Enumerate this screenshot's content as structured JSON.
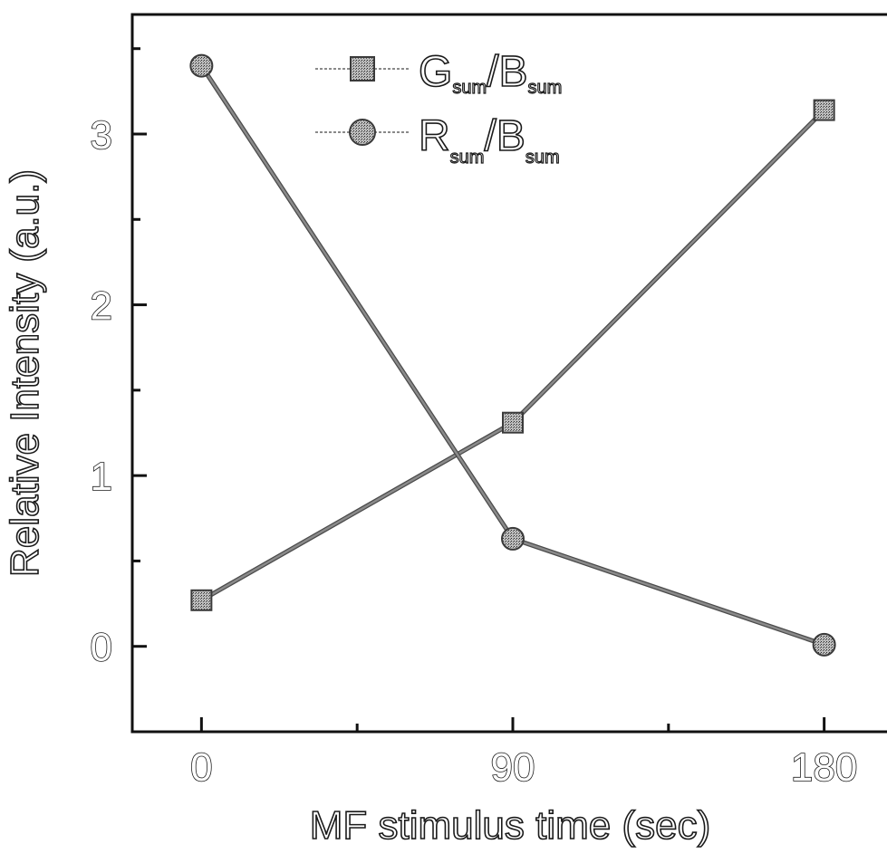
{
  "chart_data": {
    "type": "line",
    "x": [
      0,
      90,
      180
    ],
    "xticks": [
      "0",
      "90",
      "180"
    ],
    "yticks": [
      "0",
      "1",
      "2",
      "3"
    ],
    "xlim": [
      -20,
      200
    ],
    "ylim": [
      -0.5,
      3.7
    ],
    "xlabel": "MF stimulus time (sec)",
    "ylabel": "Relative Intensity (a.u.)",
    "grid": false,
    "legend_position": "top-center",
    "series": [
      {
        "name": "Gsum/Bsum",
        "legend": {
          "main1": "G",
          "sub1": "sum",
          "slash": "/",
          "main2": "B",
          "sub2": "sum"
        },
        "marker": "square",
        "values": [
          0.27,
          1.31,
          3.14
        ]
      },
      {
        "name": "Rsum/Bsum",
        "legend": {
          "main1": "R",
          "sub1": "sum",
          "slash": "/",
          "main2": "B",
          "sub2": "sum"
        },
        "marker": "circle",
        "values": [
          3.4,
          0.63,
          0.01
        ]
      }
    ],
    "colors": {
      "line": "#8a8a8a",
      "marker_fill": "#9a9a9a",
      "marker_stroke": "#3a3a3a",
      "axis": "#111111"
    }
  }
}
